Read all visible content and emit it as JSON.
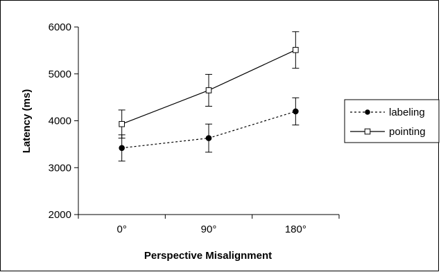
{
  "chart_data": {
    "type": "line",
    "title": "",
    "xlabel": "Perspective Misalignment",
    "ylabel": "Latency (ms)",
    "categories": [
      "0°",
      "90°",
      "180°"
    ],
    "ylim": [
      2000,
      6000
    ],
    "yticks": [
      "2000",
      "3000",
      "4000",
      "5000",
      "6000"
    ],
    "grid": false,
    "legend_position": "right",
    "series": [
      {
        "name": "labeling",
        "values": [
          3420,
          3630,
          4200
        ],
        "error": [
          280,
          300,
          290
        ],
        "line_style": "dotted",
        "marker": "filled-circle",
        "color": "#000000"
      },
      {
        "name": "pointing",
        "values": [
          3930,
          4650,
          5510
        ],
        "error": [
          300,
          340,
          390
        ],
        "line_style": "solid",
        "marker": "open-square",
        "color": "#000000"
      }
    ]
  }
}
